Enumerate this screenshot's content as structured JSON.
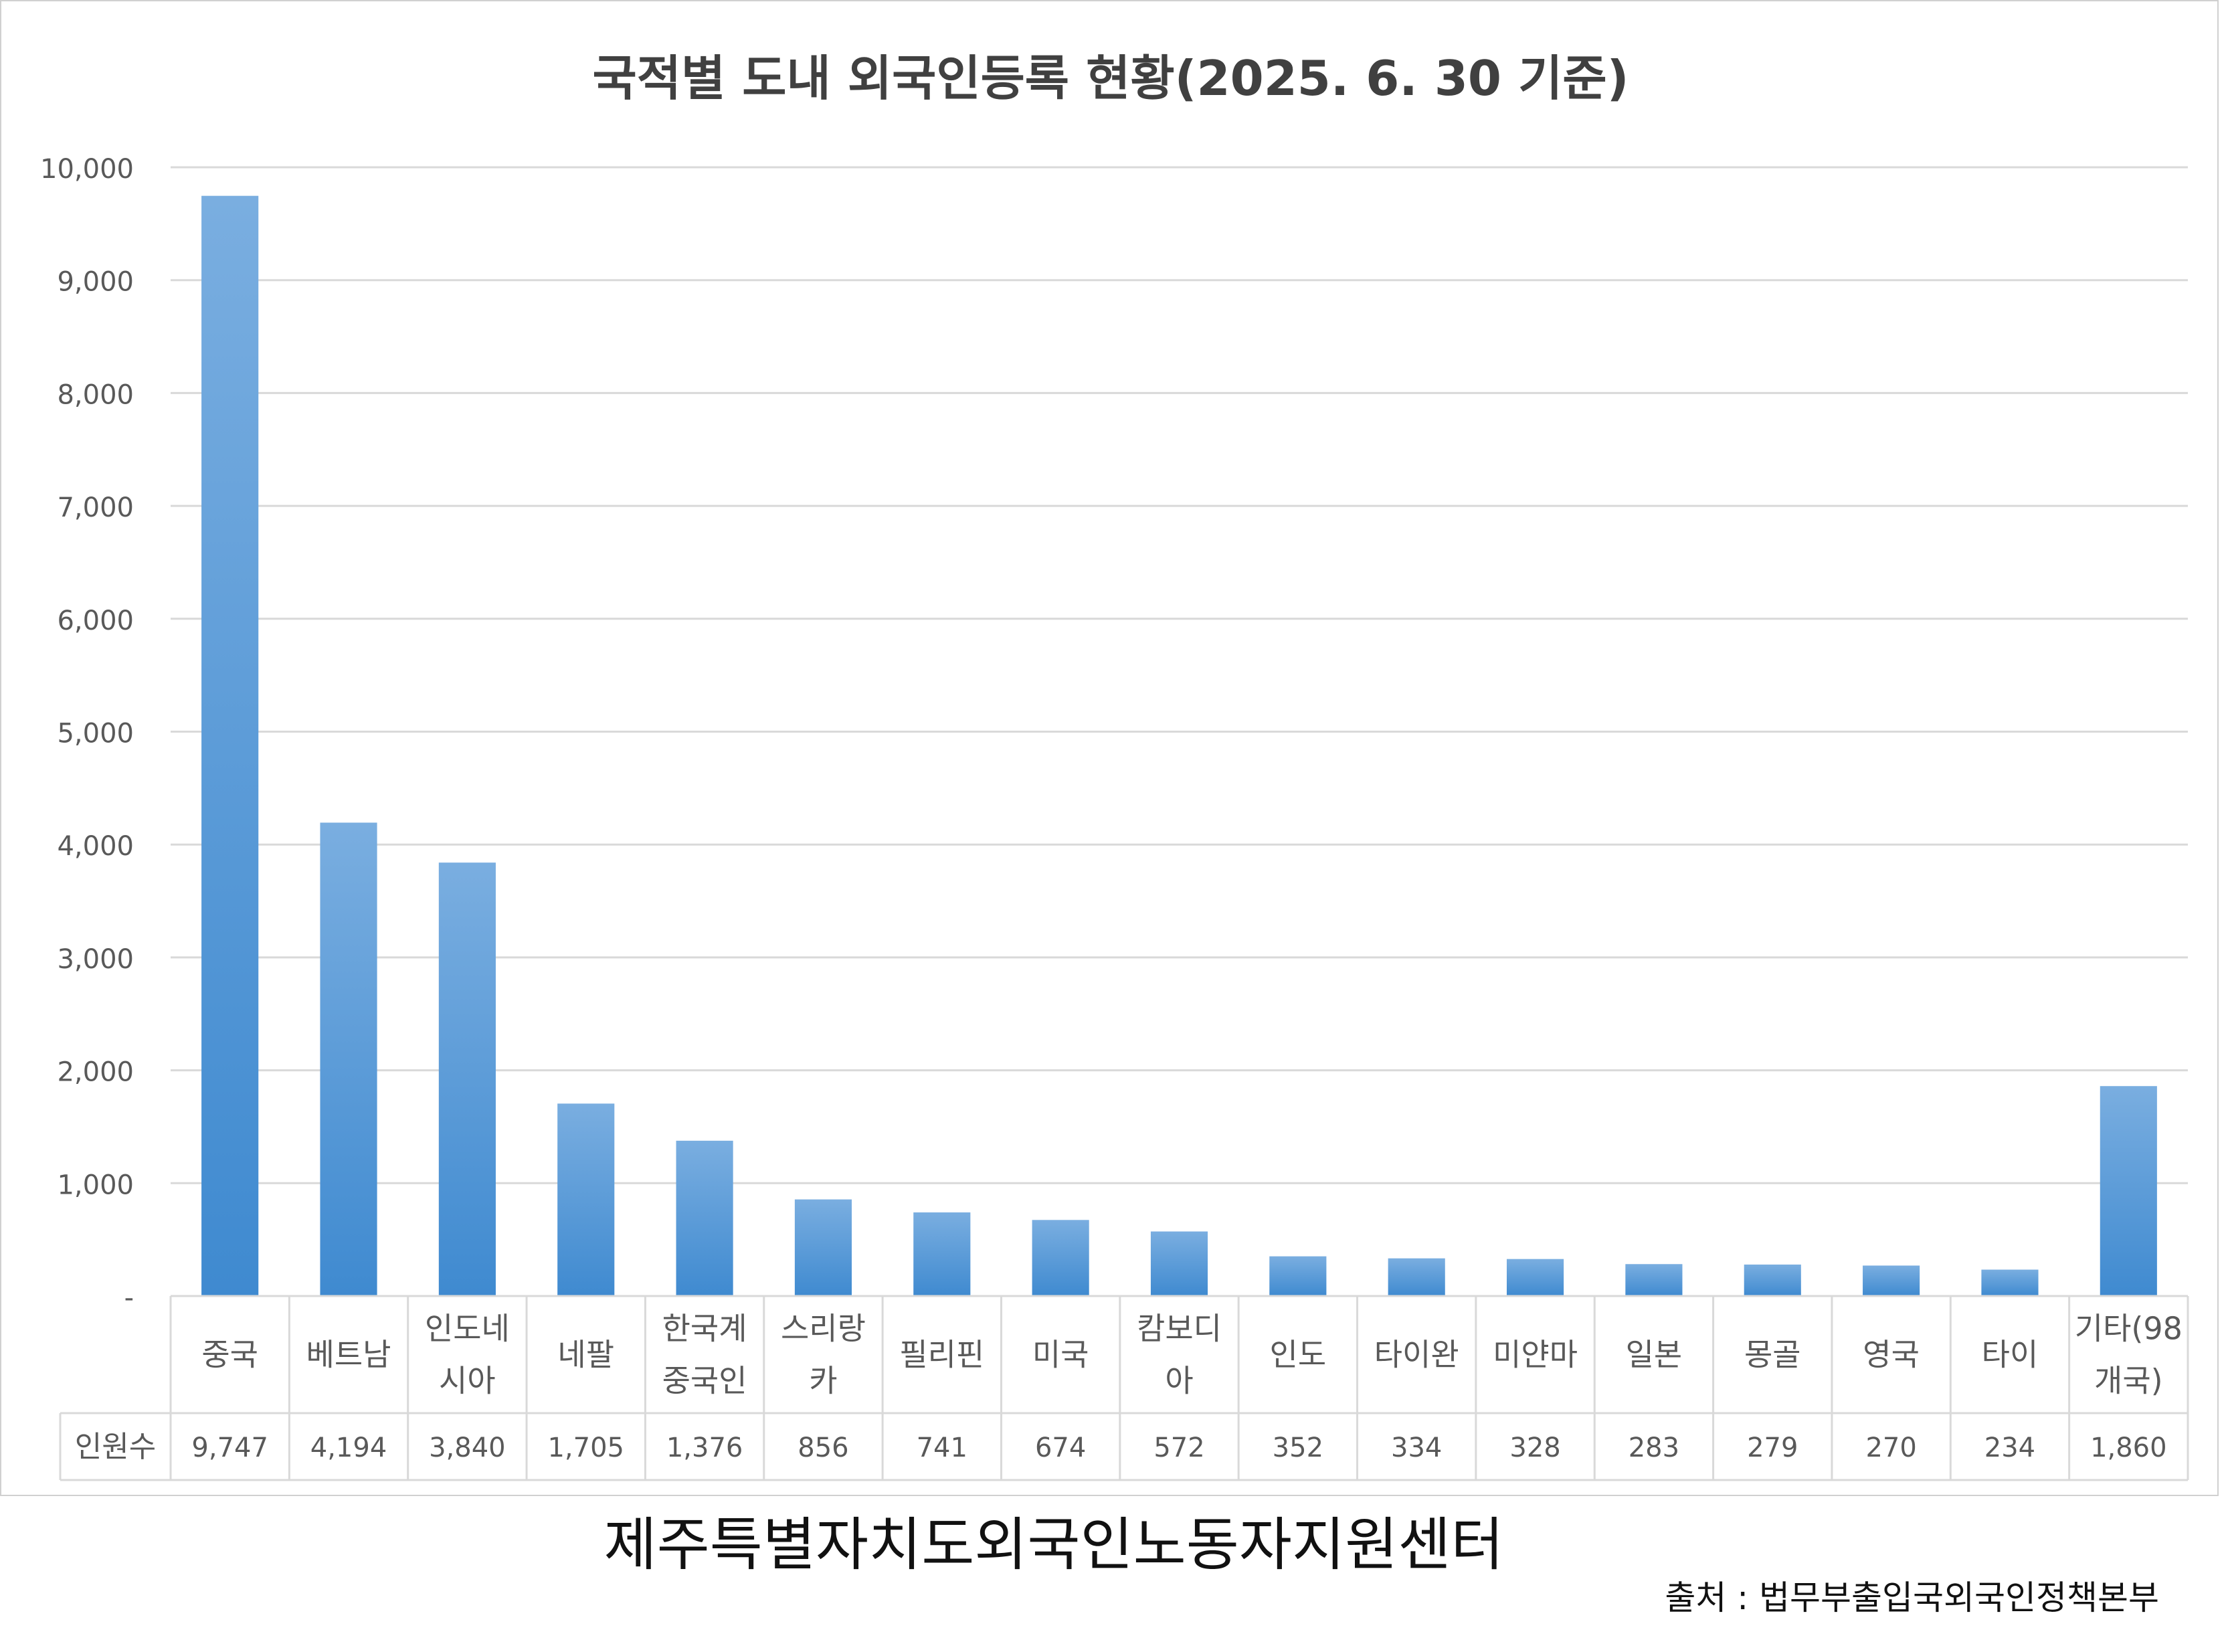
{
  "chart_data": {
    "type": "bar",
    "title": "국적별 도내 외국인등록 현황(2025. 6. 30 기준)",
    "categories": [
      [
        "중국"
      ],
      [
        "베트남"
      ],
      [
        "인도네",
        "시아"
      ],
      [
        "네팔"
      ],
      [
        "한국계",
        "중국인"
      ],
      [
        "스리랑",
        "카"
      ],
      [
        "필리핀"
      ],
      [
        "미국"
      ],
      [
        "캄보디",
        "아"
      ],
      [
        "인도"
      ],
      [
        "타이완"
      ],
      [
        "미얀마"
      ],
      [
        "일본"
      ],
      [
        "몽골"
      ],
      [
        "영국"
      ],
      [
        "타이"
      ],
      [
        "기타(98",
        "개국)"
      ]
    ],
    "series": [
      {
        "name": "인원수",
        "values": [
          9747,
          4194,
          3840,
          1705,
          1376,
          856,
          741,
          674,
          572,
          352,
          334,
          328,
          283,
          279,
          270,
          234,
          1860
        ],
        "value_labels": [
          "9,747",
          "4,194",
          "3,840",
          "1,705",
          "1,376",
          "856",
          "741",
          "674",
          "572",
          "352",
          "334",
          "328",
          "283",
          "279",
          "270",
          "234",
          "1,860"
        ]
      }
    ],
    "ylim": [
      0,
      10000
    ],
    "yticks": [
      0,
      1000,
      2000,
      3000,
      4000,
      5000,
      6000,
      7000,
      8000,
      9000,
      10000
    ],
    "ytick_labels": [
      "-",
      "1,000",
      "2,000",
      "3,000",
      "4,000",
      "5,000",
      "6,000",
      "7,000",
      "8,000",
      "9,000",
      "10,000"
    ],
    "grid": true,
    "data_table": true,
    "bar_color_light": "#7aaee0",
    "bar_color_dark": "#3f8ad0",
    "grid_color": "#d9d9d9"
  },
  "footer": {
    "organization": "제주특별자치도외국인노동자지원센터",
    "source_label": "출처 :",
    "source_value": "법무부출입국외국인정책본부"
  }
}
